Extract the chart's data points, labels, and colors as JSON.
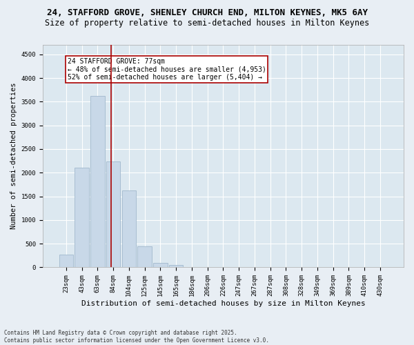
{
  "title_line1": "24, STAFFORD GROVE, SHENLEY CHURCH END, MILTON KEYNES, MK5 6AY",
  "title_line2": "Size of property relative to semi-detached houses in Milton Keynes",
  "xlabel": "Distribution of semi-detached houses by size in Milton Keynes",
  "ylabel": "Number of semi-detached properties",
  "footnote": "Contains HM Land Registry data © Crown copyright and database right 2025.\nContains public sector information licensed under the Open Government Licence v3.0.",
  "bar_labels": [
    "23sqm",
    "43sqm",
    "63sqm",
    "84sqm",
    "104sqm",
    "125sqm",
    "145sqm",
    "165sqm",
    "186sqm",
    "206sqm",
    "226sqm",
    "247sqm",
    "267sqm",
    "287sqm",
    "308sqm",
    "328sqm",
    "349sqm",
    "369sqm",
    "389sqm",
    "410sqm",
    "430sqm"
  ],
  "bar_values": [
    270,
    2100,
    3620,
    2230,
    1620,
    450,
    100,
    55,
    0,
    0,
    0,
    0,
    0,
    0,
    0,
    0,
    0,
    0,
    0,
    0,
    0
  ],
  "bar_color": "#c8d8e8",
  "bar_edge_color": "#a0b8cc",
  "vline_color": "#aa0000",
  "annotation_text": "24 STAFFORD GROVE: 77sqm\n← 48% of semi-detached houses are smaller (4,953)\n52% of semi-detached houses are larger (5,404) →",
  "annotation_box_color": "#ffffff",
  "annotation_box_edge": "#aa0000",
  "ylim": [
    0,
    4700
  ],
  "yticks": [
    0,
    500,
    1000,
    1500,
    2000,
    2500,
    3000,
    3500,
    4000,
    4500
  ],
  "bg_color": "#e8eef4",
  "plot_bg_color": "#dce8f0",
  "grid_color": "#ffffff",
  "title1_fontsize": 9,
  "title2_fontsize": 8.5,
  "xlabel_fontsize": 8,
  "ylabel_fontsize": 7.5,
  "tick_fontsize": 6.5,
  "annot_fontsize": 7,
  "footnote_fontsize": 5.5
}
